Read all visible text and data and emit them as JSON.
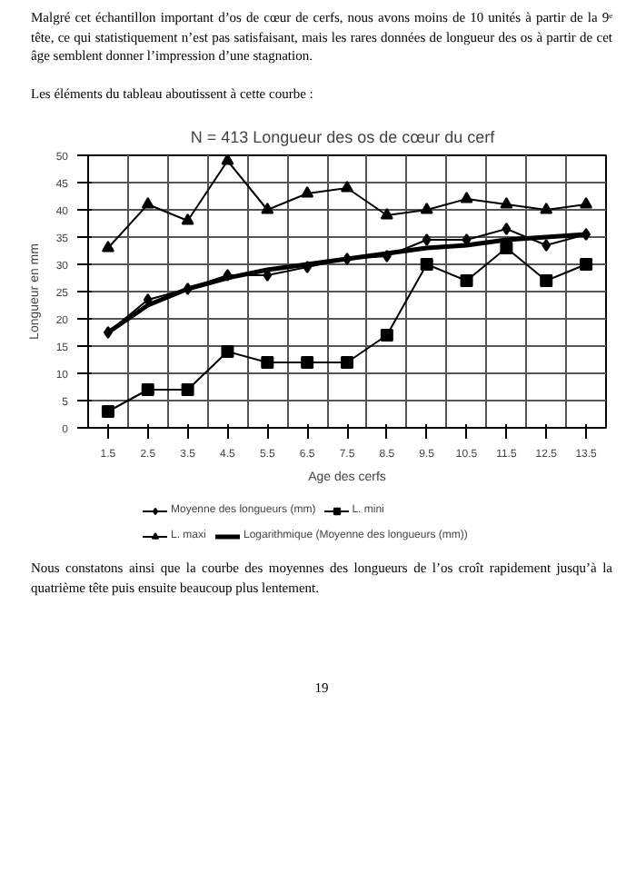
{
  "chart_data": {
    "type": "line",
    "title": "N = 413   Longueur des os de cœur du cerf",
    "xlabel": "Age des cerfs",
    "ylabel": "Longueur en mm",
    "categories": [
      "1.5",
      "2.5",
      "3.5",
      "4.5",
      "5.5",
      "6.5",
      "7.5",
      "8.5",
      "9.5",
      "10.5",
      "11.5",
      "12.5",
      "13.5"
    ],
    "series": [
      {
        "name": "Moyenne des longueurs (mm)",
        "color": "#000000",
        "marker": "diamond",
        "values": [
          17.5,
          23.5,
          25.5,
          28,
          28,
          29.5,
          31,
          31.5,
          34.5,
          34.5,
          36.5,
          33.5,
          35.5
        ]
      },
      {
        "name": "L. mini",
        "color": "#000000",
        "marker": "square",
        "values": [
          3,
          7,
          7,
          14,
          12,
          12,
          12,
          17,
          30,
          27,
          33,
          27,
          30
        ]
      },
      {
        "name": "L. maxi",
        "color": "#000000",
        "marker": "triangle",
        "values": [
          33,
          41,
          38,
          49,
          40,
          43,
          44,
          39,
          40,
          42,
          41,
          40,
          41
        ]
      },
      {
        "name": "Logarithmique (Moyenne des longueurs (mm))",
        "color": "#000000",
        "marker": "none",
        "type": "line",
        "values": [
          17.5,
          22.5,
          25.5,
          27.5,
          29,
          30,
          31,
          32,
          33,
          33.5,
          34.5,
          35,
          35.5
        ]
      }
    ],
    "ylim": [
      0,
      50
    ],
    "yticks": [
      0,
      5,
      10,
      15,
      20,
      25,
      30,
      35,
      40,
      45,
      50
    ],
    "grid": true,
    "legend": "bottom",
    "annotations": [
      "Malgré cet échantillon important d’os de cœur de cerfs, nous avons moins de 10 unités à partir de la 9ᵉ tête, ce qui statistiquement n’est pas satisfaisant, mais les rares données de longueur des os à partir de cet âge semblent donner l’impression d’une stagnation.",
      "Les éléments du tableau aboutissent à cette courbe :",
      "Nous constatons ainsi que la courbe des moyennes des longueurs de l’os croît rapidement jusqu’à la quatrième tête puis ensuite beaucoup plus lentement.",
      "19"
    ]
  }
}
